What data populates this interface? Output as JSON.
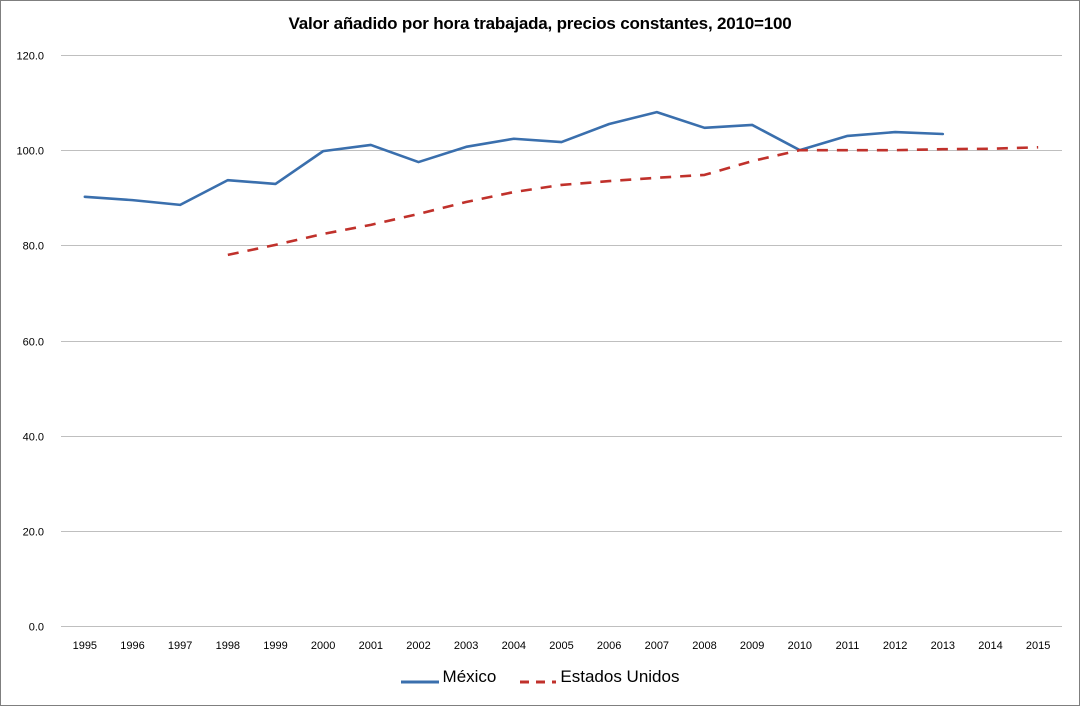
{
  "chart_data": {
    "type": "line",
    "title": "Valor añadido por hora trabajada,  precios constantes, 2010=100",
    "xlabel": "",
    "ylabel": "",
    "ylim": [
      0,
      120
    ],
    "yticks": [
      "0.0",
      "20.0",
      "40.0",
      "60.0",
      "80.0",
      "100.0",
      "120.0"
    ],
    "ytick_values": [
      0,
      20,
      40,
      60,
      80,
      100,
      120
    ],
    "grid": true,
    "legend_position": "bottom",
    "categories": [
      "1995",
      "1996",
      "1997",
      "1998",
      "1999",
      "2000",
      "2001",
      "2002",
      "2003",
      "2004",
      "2005",
      "2006",
      "2007",
      "2008",
      "2009",
      "2010",
      "2011",
      "2012",
      "2013",
      "2014",
      "2015"
    ],
    "series": [
      {
        "name": "México",
        "color": "#3a6fad",
        "style": "solid",
        "values": [
          90.2,
          89.5,
          88.5,
          93.7,
          92.9,
          99.8,
          101.1,
          97.5,
          100.7,
          102.4,
          101.7,
          105.5,
          108.0,
          104.7,
          105.3,
          100.0,
          103.0,
          103.8,
          103.4,
          null,
          null
        ]
      },
      {
        "name": "Estados Unidos",
        "color": "#c0312b",
        "style": "dashed",
        "values": [
          null,
          null,
          null,
          78.0,
          80.1,
          82.4,
          84.3,
          86.6,
          89.1,
          91.2,
          92.7,
          93.5,
          94.2,
          94.8,
          97.7,
          100.0,
          100.0,
          100.0,
          100.2,
          100.3,
          100.6
        ]
      }
    ]
  }
}
